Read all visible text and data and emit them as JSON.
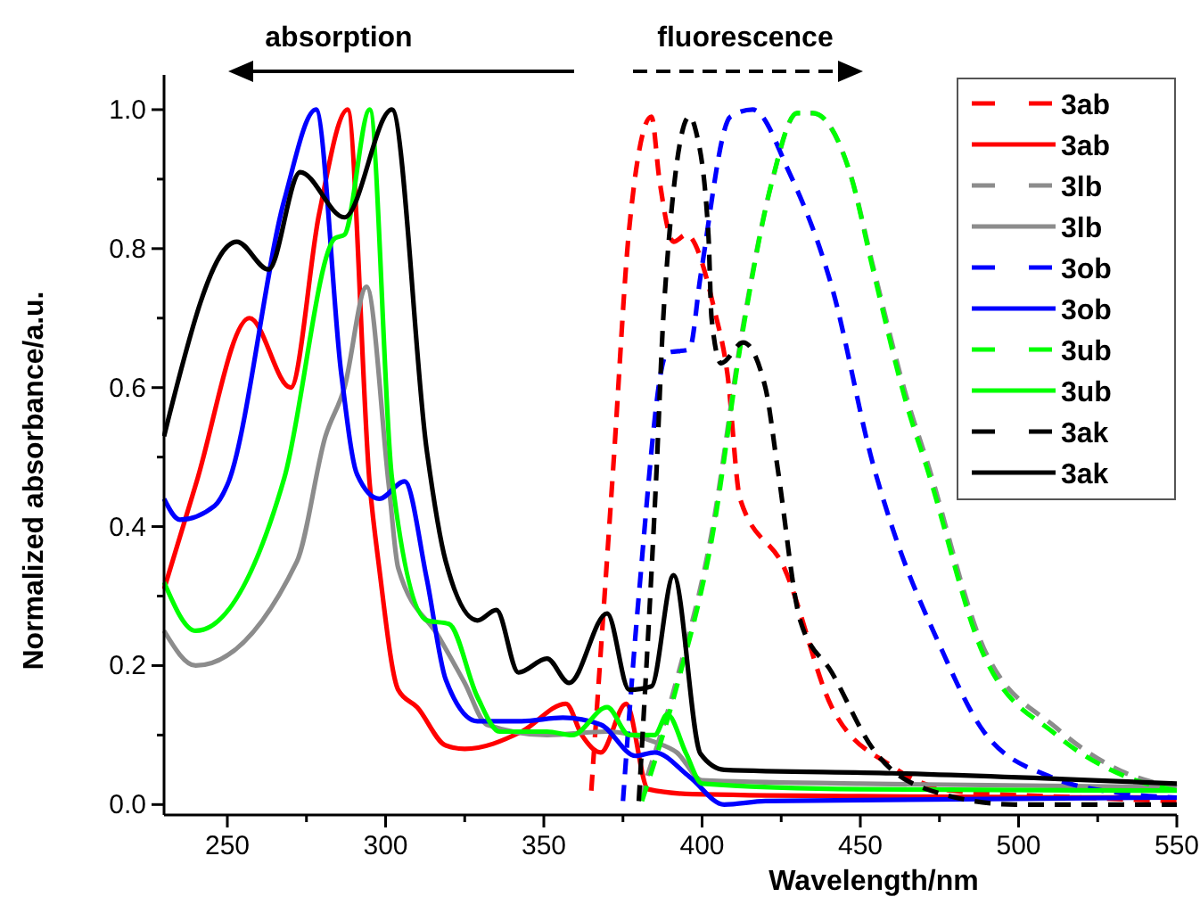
{
  "chart_data": {
    "type": "line",
    "xlabel": "Wavelength/nm",
    "ylabel": "Normalized absorbance/a.u.",
    "annotations": [
      "absorption",
      "fluorescence"
    ],
    "xlim": [
      230,
      550
    ],
    "ylim": [
      -0.015,
      1.05
    ],
    "xticks": [
      250,
      {
        "value": 275,
        "label": null
      },
      300,
      {
        "value": 325,
        "label": null
      },
      350,
      {
        "value": 375,
        "label": null
      },
      400,
      {
        "value": 425,
        "label": null
      },
      450,
      {
        "value": 475,
        "label": null
      },
      500,
      {
        "value": 525,
        "label": null
      },
      550
    ],
    "yticks": [
      {
        "value": 0,
        "label": "0.0"
      },
      {
        "value": 0.1,
        "label": null
      },
      {
        "value": 0.2,
        "label": "0.2"
      },
      {
        "value": 0.3,
        "label": null
      },
      {
        "value": 0.4,
        "label": "0.4"
      },
      {
        "value": 0.5,
        "label": null
      },
      {
        "value": 0.6,
        "label": "0.6"
      },
      {
        "value": 0.7,
        "label": null
      },
      {
        "value": 0.8,
        "label": "0.8"
      },
      {
        "value": 0.9,
        "label": null
      },
      {
        "value": 1.0,
        "label": "1.0"
      }
    ],
    "grid": false,
    "legend": "top right",
    "marker": "none",
    "series": [
      {
        "name": "3ab",
        "color": "#ff0000",
        "line_style": "dashed",
        "x": [
          365,
          372,
          377,
          384,
          386.5,
          391,
          395,
          404,
          408,
          412,
          426,
          441,
          460,
          479,
          520,
          550
        ],
        "values": [
          0.02,
          0.49,
          0.83,
          0.99,
          0.9,
          0.81,
          0.82,
          0.71,
          0.62,
          0.44,
          0.34,
          0.14,
          0.055,
          0.02,
          0.01,
          0.005
        ]
      },
      {
        "name": "3ab",
        "color": "#ff0000",
        "line_style": "solid",
        "x": [
          230,
          240,
          257,
          270,
          279,
          288,
          295,
          298,
          304,
          310,
          319,
          325,
          343,
          357,
          362,
          368,
          376,
          383,
          397,
          450,
          550
        ],
        "values": [
          0.31,
          0.46,
          0.7,
          0.6,
          0.85,
          1.0,
          0.46,
          0.34,
          0.165,
          0.14,
          0.085,
          0.08,
          0.105,
          0.145,
          0.1,
          0.075,
          0.145,
          0.022,
          0.015,
          0.012,
          0.01
        ]
      },
      {
        "name": "3lb",
        "color": "#8c8c8c",
        "line_style": "dashed",
        "x": [
          380,
          392,
          403,
          413,
          422,
          430,
          435,
          447,
          454,
          465,
          471,
          489,
          512,
          534,
          550
        ],
        "values": [
          0.005,
          0.18,
          0.39,
          0.69,
          0.895,
          0.995,
          0.995,
          0.905,
          0.775,
          0.58,
          0.495,
          0.225,
          0.11,
          0.045,
          0.025
        ]
      },
      {
        "name": "3lb",
        "color": "#8c8c8c",
        "line_style": "solid",
        "x": [
          230,
          240,
          272,
          281,
          287,
          294,
          301,
          304,
          317,
          325,
          332,
          351,
          370,
          385,
          392,
          400,
          450,
          550
        ],
        "values": [
          0.25,
          0.2,
          0.35,
          0.53,
          0.6,
          0.745,
          0.46,
          0.34,
          0.24,
          0.175,
          0.115,
          0.1,
          0.105,
          0.09,
          0.075,
          0.035,
          0.03,
          0.025
        ]
      },
      {
        "name": "3ob",
        "color": "#0000ff",
        "line_style": "dashed",
        "x": [
          375,
          380,
          389,
          396,
          399.5,
          409,
          416,
          427.5,
          441,
          454,
          460,
          475,
          489,
          510,
          535,
          550
        ],
        "values": [
          0.005,
          0.3,
          0.65,
          0.655,
          0.76,
          0.99,
          1.0,
          0.91,
          0.745,
          0.49,
          0.4,
          0.23,
          0.105,
          0.04,
          0.015,
          0.01
        ]
      },
      {
        "name": "3ob",
        "color": "#0000ff",
        "line_style": "solid",
        "x": [
          230,
          235,
          246,
          250,
          268,
          278,
          286,
          291,
          298,
          306,
          313,
          319,
          329,
          343,
          356,
          368,
          379,
          385,
          396,
          407,
          420,
          550
        ],
        "values": [
          0.44,
          0.41,
          0.43,
          0.46,
          0.87,
          1.0,
          0.62,
          0.475,
          0.44,
          0.465,
          0.325,
          0.18,
          0.12,
          0.12,
          0.125,
          0.115,
          0.07,
          0.075,
          0.04,
          0.0,
          0.005,
          0.01
        ]
      },
      {
        "name": "3ub",
        "color": "#00ff00",
        "line_style": "dashed",
        "x": [
          381,
          392,
          403,
          413,
          422,
          430,
          435,
          447,
          454,
          465,
          471,
          489,
          512,
          534,
          550
        ],
        "values": [
          0.005,
          0.17,
          0.38,
          0.685,
          0.895,
          0.995,
          0.995,
          0.905,
          0.77,
          0.57,
          0.485,
          0.215,
          0.1,
          0.04,
          0.02
        ]
      },
      {
        "name": "3ub",
        "color": "#00ff00",
        "line_style": "solid",
        "x": [
          230,
          240,
          268,
          284,
          287,
          295,
          302,
          313,
          320,
          329,
          336,
          351,
          359,
          370,
          377,
          385,
          389,
          395,
          400,
          450,
          550
        ],
        "values": [
          0.32,
          0.25,
          0.47,
          0.815,
          0.82,
          1.0,
          0.47,
          0.265,
          0.26,
          0.155,
          0.105,
          0.105,
          0.1,
          0.14,
          0.1,
          0.1,
          0.13,
          0.073,
          0.03,
          0.022,
          0.02
        ]
      },
      {
        "name": "3ak",
        "color": "#000000",
        "line_style": "dashed",
        "x": [
          380,
          385.5,
          388,
          396,
          398,
          402,
          403,
          406,
          413,
          420,
          424,
          431,
          441,
          454,
          471,
          499,
          550
        ],
        "values": [
          0.005,
          0.47,
          0.72,
          0.99,
          0.97,
          0.82,
          0.7,
          0.635,
          0.665,
          0.6,
          0.48,
          0.265,
          0.19,
          0.08,
          0.022,
          0.0,
          0.0
        ]
      },
      {
        "name": "3ak",
        "color": "#000000",
        "line_style": "solid",
        "x": [
          230,
          253,
          263,
          273,
          287,
          302,
          313,
          319,
          329,
          335,
          342,
          351,
          358,
          370,
          377,
          384,
          391,
          399.5,
          407,
          460,
          550
        ],
        "values": [
          0.53,
          0.81,
          0.77,
          0.91,
          0.845,
          1.0,
          0.51,
          0.35,
          0.265,
          0.28,
          0.19,
          0.21,
          0.175,
          0.275,
          0.165,
          0.17,
          0.33,
          0.073,
          0.05,
          0.045,
          0.03
        ]
      }
    ]
  }
}
